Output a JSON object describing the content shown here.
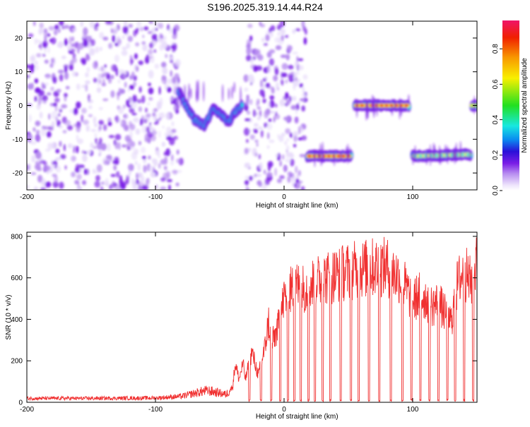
{
  "title": "S196.2025.319.14.44.R24",
  "colors": {
    "spectral_ramp": [
      "#ffffff",
      "#e8dcfb",
      "#b78cf0",
      "#7a1ee6",
      "#2a10d8",
      "#0a8cf0",
      "#18e8e0",
      "#22e020",
      "#f8f000",
      "#f89a00",
      "#f02000",
      "#f01468"
    ],
    "snr_line": "#f03030",
    "axis": "#000000"
  },
  "chart_data": [
    {
      "type": "heatmap",
      "name": "spectrogram",
      "title": "S196.2025.319.14.44.R24",
      "xlabel": "Height of straight line (km)",
      "ylabel": "Frequency (Hz)",
      "xlim": [
        -200,
        150
      ],
      "ylim": [
        -25,
        25
      ],
      "xticks": [
        -200,
        -100,
        0,
        100
      ],
      "yticks": [
        -20,
        -10,
        0,
        10,
        20
      ],
      "colorbar": {
        "label": "Normalized spectral amplitude",
        "range": [
          0.0,
          0.96
        ],
        "ticks": [
          0.0,
          0.2,
          0.4,
          0.6,
          0.8
        ]
      },
      "features": [
        {
          "label": "noise",
          "x_range": [
            -200,
            -80
          ],
          "freq_range": [
            -25,
            25
          ],
          "peak": 0.15
        },
        {
          "label": "noise",
          "x_range": [
            -30,
            17
          ],
          "freq_range": [
            -25,
            25
          ],
          "peak": 0.12
        },
        {
          "label": "track",
          "points": [
            [
              -82,
              4
            ],
            [
              -76,
              0
            ],
            [
              -70,
              -4
            ],
            [
              -62,
              -6
            ],
            [
              -55,
              -1
            ],
            [
              -48,
              -3
            ],
            [
              -43,
              -5
            ],
            [
              -38,
              -2
            ],
            [
              -33,
              0
            ]
          ],
          "peak": 0.35
        },
        {
          "label": "track",
          "points": [
            [
              18,
              -15
            ],
            [
              52,
              -15
            ]
          ],
          "peak": 0.9
        },
        {
          "label": "track",
          "points": [
            [
              55,
              0
            ],
            [
              97,
              0
            ]
          ],
          "peak": 0.9
        },
        {
          "label": "track",
          "points": [
            [
              100,
              -15
            ],
            [
              145,
              -14.5
            ]
          ],
          "peak": 0.5
        },
        {
          "label": "track",
          "points": [
            [
              146,
              0
            ],
            [
              150,
              0
            ]
          ],
          "peak": 0.6
        }
      ]
    },
    {
      "type": "line",
      "name": "snr",
      "title": "",
      "xlabel": "Height of straight line (km)",
      "ylabel": "SNR (10 * v/v)",
      "xlim": [
        -200,
        150
      ],
      "ylim": [
        0,
        820
      ],
      "xticks": [
        -200,
        -100,
        0,
        100
      ],
      "yticks": [
        0,
        200,
        400,
        600,
        800
      ],
      "envelope": {
        "x": [
          -200,
          -150,
          -100,
          -80,
          -60,
          -45,
          -40,
          -38,
          -35,
          -32,
          -30,
          -25,
          -20,
          -15,
          -12,
          -10,
          -5,
          0,
          5,
          10,
          15,
          20,
          30,
          40,
          50,
          60,
          70,
          80,
          85,
          90,
          95,
          100,
          105,
          110,
          115,
          120,
          125,
          130,
          135,
          140,
          145,
          150
        ],
        "y": [
          20,
          20,
          22,
          30,
          60,
          40,
          80,
          200,
          120,
          200,
          120,
          260,
          140,
          280,
          420,
          300,
          380,
          540,
          580,
          600,
          590,
          610,
          640,
          660,
          680,
          690,
          700,
          700,
          670,
          650,
          590,
          520,
          560,
          540,
          500,
          520,
          460,
          420,
          620,
          680,
          620,
          720
        ]
      },
      "dropouts": [
        -27,
        -18,
        -10,
        -3,
        3,
        8,
        13,
        19,
        24,
        30,
        36,
        44,
        52,
        58,
        66,
        74,
        83,
        92,
        99,
        106,
        113,
        120,
        127,
        133,
        140,
        147
      ]
    }
  ]
}
